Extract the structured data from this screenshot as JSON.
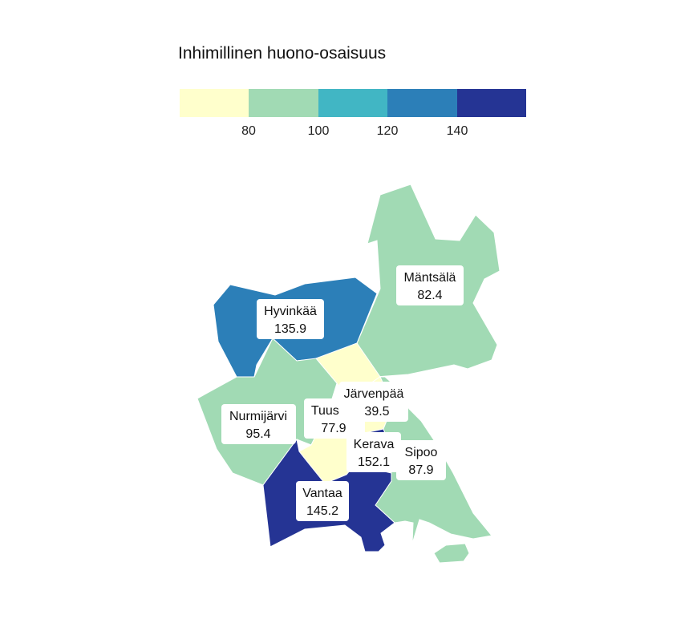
{
  "legend": {
    "title": "Inhimillinen huono-osaisuus",
    "colors": [
      "#ffffcc",
      "#a1dab4",
      "#41b6c4",
      "#2c7fb8",
      "#253494"
    ],
    "ticks": [
      "80",
      "100",
      "120",
      "140"
    ]
  },
  "regions": [
    {
      "name": "Mäntsälä",
      "value": "82.4",
      "color": "#a1dab4"
    },
    {
      "name": "Hyvinkää",
      "value": "135.9",
      "color": "#2c7fb8"
    },
    {
      "name": "Nurmijärvi",
      "value": "95.4",
      "color": "#a1dab4"
    },
    {
      "name": "Tuusula",
      "value": "77.9",
      "color": "#ffffcc"
    },
    {
      "name": "Järvenpää",
      "value": "39.5",
      "color": "#ffffcc"
    },
    {
      "name": "Kerava",
      "value": "152.1",
      "color": "#253494"
    },
    {
      "name": "Sipoo",
      "value": "87.9",
      "color": "#a1dab4"
    },
    {
      "name": "Vantaa",
      "value": "145.2",
      "color": "#253494"
    }
  ]
}
